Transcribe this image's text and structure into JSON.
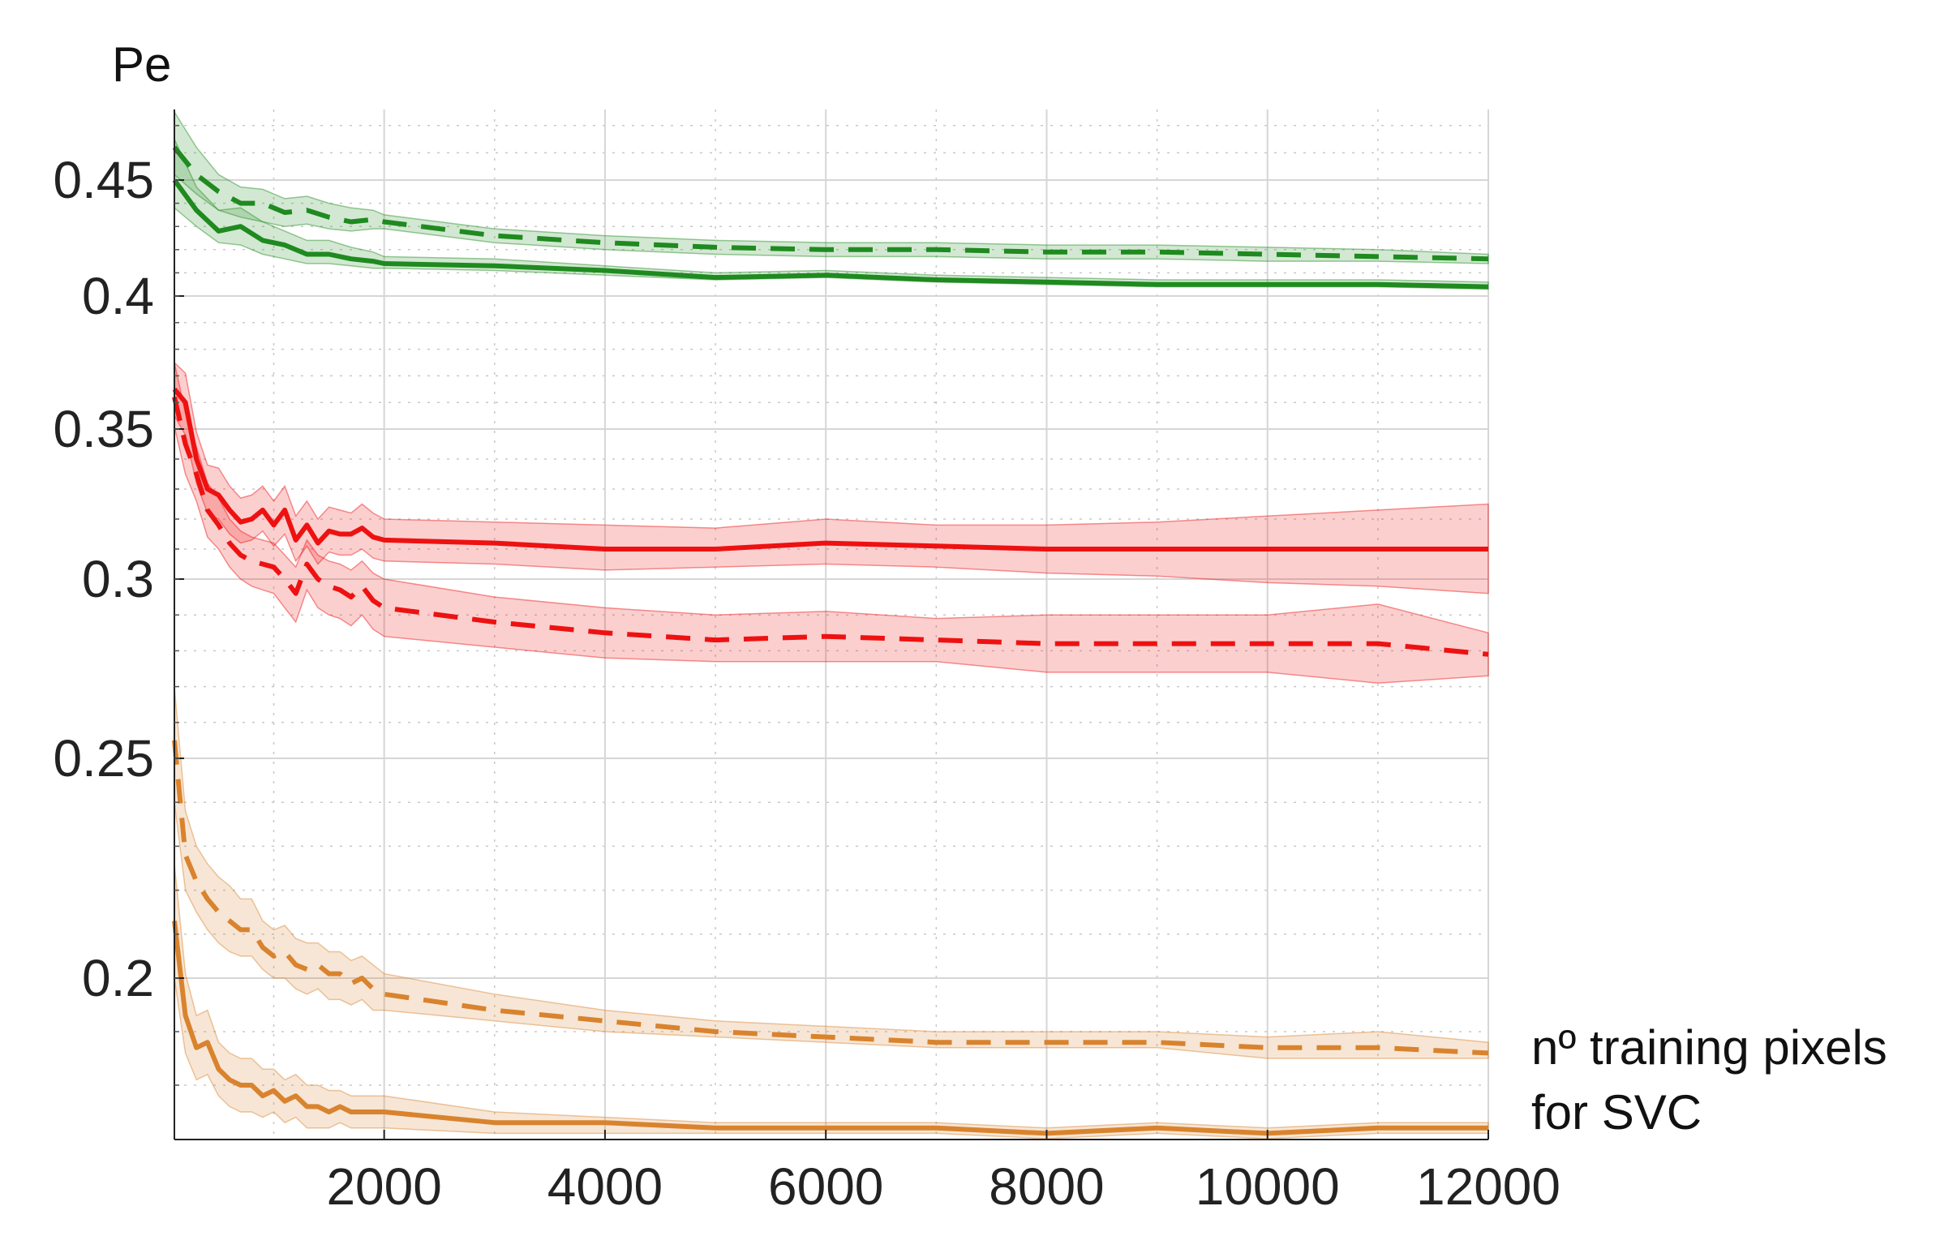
{
  "chart_data": {
    "type": "line",
    "title": "",
    "ylabel": "Pe",
    "xlabel_lines": [
      "nº training pixels",
      "for SVC"
    ],
    "xlim": [
      100,
      12000
    ],
    "ylim": [
      0.17,
      0.475
    ],
    "y_scale": "nonlinear (tick spacing decreases toward upper values)",
    "x_ticks": [
      2000,
      4000,
      6000,
      8000,
      10000,
      12000
    ],
    "x_tick_labels": [
      "2000",
      "4000",
      "6000",
      "8000",
      "10000",
      "12000"
    ],
    "y_ticks": [
      0.2,
      0.25,
      0.3,
      0.35,
      0.4,
      0.45
    ],
    "y_tick_labels": [
      "0.2",
      "0.25",
      "0.3",
      "0.35",
      "0.4",
      "0.45"
    ],
    "grid": true,
    "legend": "none",
    "series": [
      {
        "color": "#1f8a1f",
        "style": "solid",
        "x": [
          100,
          300,
          500,
          700,
          900,
          1100,
          1300,
          1500,
          1700,
          1900,
          2000,
          3000,
          4000,
          5000,
          6000,
          7000,
          8000,
          9000,
          10000,
          11000,
          12000
        ],
        "y": [
          0.45,
          0.437,
          0.428,
          0.43,
          0.424,
          0.422,
          0.418,
          0.418,
          0.416,
          0.415,
          0.414,
          0.413,
          0.411,
          0.408,
          0.409,
          0.407,
          0.406,
          0.405,
          0.405,
          0.405,
          0.404
        ],
        "lower": [
          0.438,
          0.43,
          0.423,
          0.422,
          0.418,
          0.416,
          0.414,
          0.414,
          0.413,
          0.412,
          0.412,
          0.411,
          0.409,
          0.407,
          0.408,
          0.406,
          0.405,
          0.404,
          0.404,
          0.404,
          0.403
        ],
        "upper": [
          0.465,
          0.447,
          0.437,
          0.438,
          0.432,
          0.428,
          0.424,
          0.424,
          0.421,
          0.419,
          0.417,
          0.416,
          0.413,
          0.41,
          0.411,
          0.409,
          0.408,
          0.407,
          0.407,
          0.407,
          0.406
        ]
      },
      {
        "color": "#1f8a1f",
        "style": "dashed",
        "x": [
          100,
          300,
          500,
          700,
          900,
          1100,
          1300,
          1500,
          1700,
          1900,
          2000,
          3000,
          4000,
          5000,
          6000,
          7000,
          8000,
          9000,
          10000,
          11000,
          12000
        ],
        "y": [
          0.462,
          0.452,
          0.445,
          0.44,
          0.44,
          0.436,
          0.437,
          0.434,
          0.432,
          0.433,
          0.432,
          0.426,
          0.423,
          0.421,
          0.42,
          0.42,
          0.419,
          0.419,
          0.418,
          0.417,
          0.416
        ],
        "lower": [
          0.452,
          0.444,
          0.437,
          0.434,
          0.432,
          0.43,
          0.431,
          0.429,
          0.428,
          0.429,
          0.429,
          0.423,
          0.42,
          0.418,
          0.417,
          0.417,
          0.416,
          0.416,
          0.415,
          0.415,
          0.414
        ],
        "upper": [
          0.475,
          0.462,
          0.452,
          0.447,
          0.446,
          0.442,
          0.443,
          0.44,
          0.438,
          0.437,
          0.435,
          0.429,
          0.426,
          0.424,
          0.423,
          0.423,
          0.422,
          0.422,
          0.421,
          0.42,
          0.418
        ]
      },
      {
        "color": "#ee1111",
        "style": "solid",
        "x": [
          100,
          200,
          300,
          400,
          500,
          600,
          700,
          800,
          900,
          1000,
          1100,
          1200,
          1300,
          1400,
          1500,
          1600,
          1700,
          1800,
          1900,
          2000,
          3000,
          4000,
          5000,
          6000,
          7000,
          8000,
          9000,
          10000,
          11000,
          12000
        ],
        "y": [
          0.365,
          0.36,
          0.34,
          0.33,
          0.328,
          0.323,
          0.319,
          0.32,
          0.323,
          0.318,
          0.323,
          0.313,
          0.318,
          0.312,
          0.316,
          0.315,
          0.315,
          0.317,
          0.314,
          0.313,
          0.312,
          0.31,
          0.31,
          0.312,
          0.311,
          0.31,
          0.31,
          0.31,
          0.31,
          0.31
        ],
        "lower": [
          0.355,
          0.348,
          0.332,
          0.322,
          0.32,
          0.315,
          0.312,
          0.313,
          0.316,
          0.311,
          0.315,
          0.306,
          0.311,
          0.305,
          0.309,
          0.308,
          0.308,
          0.31,
          0.307,
          0.306,
          0.305,
          0.303,
          0.304,
          0.305,
          0.304,
          0.302,
          0.301,
          0.299,
          0.298,
          0.296
        ],
        "upper": [
          0.375,
          0.371,
          0.349,
          0.338,
          0.337,
          0.331,
          0.327,
          0.328,
          0.331,
          0.326,
          0.331,
          0.321,
          0.326,
          0.32,
          0.324,
          0.323,
          0.322,
          0.325,
          0.322,
          0.32,
          0.319,
          0.318,
          0.317,
          0.32,
          0.318,
          0.318,
          0.319,
          0.321,
          0.323,
          0.325
        ]
      },
      {
        "color": "#ee1111",
        "style": "dashed",
        "x": [
          100,
          200,
          300,
          400,
          500,
          600,
          700,
          800,
          900,
          1000,
          1100,
          1200,
          1300,
          1400,
          1500,
          1600,
          1700,
          1800,
          1900,
          2000,
          3000,
          4000,
          5000,
          6000,
          7000,
          8000,
          9000,
          10000,
          11000,
          12000
        ],
        "y": [
          0.362,
          0.345,
          0.335,
          0.323,
          0.318,
          0.312,
          0.308,
          0.306,
          0.305,
          0.304,
          0.3,
          0.296,
          0.305,
          0.3,
          0.298,
          0.297,
          0.295,
          0.298,
          0.294,
          0.292,
          0.288,
          0.285,
          0.283,
          0.284,
          0.283,
          0.282,
          0.282,
          0.282,
          0.282,
          0.279
        ],
        "lower": [
          0.351,
          0.335,
          0.326,
          0.314,
          0.31,
          0.304,
          0.3,
          0.298,
          0.297,
          0.296,
          0.292,
          0.288,
          0.297,
          0.292,
          0.29,
          0.289,
          0.287,
          0.29,
          0.286,
          0.284,
          0.281,
          0.278,
          0.277,
          0.277,
          0.277,
          0.274,
          0.274,
          0.274,
          0.271,
          0.273
        ],
        "upper": [
          0.375,
          0.356,
          0.344,
          0.332,
          0.327,
          0.32,
          0.316,
          0.314,
          0.313,
          0.312,
          0.308,
          0.304,
          0.313,
          0.308,
          0.306,
          0.305,
          0.303,
          0.306,
          0.302,
          0.3,
          0.295,
          0.292,
          0.29,
          0.291,
          0.289,
          0.29,
          0.29,
          0.29,
          0.293,
          0.285
        ]
      },
      {
        "color": "#d9832e",
        "style": "solid",
        "x": [
          100,
          200,
          300,
          400,
          500,
          600,
          700,
          800,
          900,
          1000,
          1100,
          1200,
          1300,
          1400,
          1500,
          1600,
          1700,
          1800,
          1900,
          2000,
          3000,
          4000,
          5000,
          6000,
          7000,
          8000,
          9000,
          10000,
          11000,
          12000
        ],
        "y": [
          0.213,
          0.193,
          0.187,
          0.188,
          0.183,
          0.181,
          0.18,
          0.18,
          0.178,
          0.179,
          0.177,
          0.178,
          0.176,
          0.176,
          0.175,
          0.176,
          0.175,
          0.175,
          0.175,
          0.175,
          0.173,
          0.173,
          0.172,
          0.172,
          0.172,
          0.171,
          0.172,
          0.171,
          0.172,
          0.172
        ],
        "lower": [
          0.2,
          0.186,
          0.181,
          0.182,
          0.178,
          0.176,
          0.175,
          0.175,
          0.174,
          0.175,
          0.173,
          0.174,
          0.172,
          0.172,
          0.172,
          0.173,
          0.172,
          0.172,
          0.172,
          0.172,
          0.171,
          0.171,
          0.171,
          0.171,
          0.171,
          0.17,
          0.171,
          0.17,
          0.171,
          0.171
        ],
        "upper": [
          0.226,
          0.201,
          0.193,
          0.194,
          0.188,
          0.186,
          0.185,
          0.185,
          0.183,
          0.183,
          0.181,
          0.182,
          0.18,
          0.18,
          0.179,
          0.179,
          0.178,
          0.178,
          0.178,
          0.178,
          0.175,
          0.174,
          0.173,
          0.173,
          0.173,
          0.172,
          0.173,
          0.172,
          0.173,
          0.173
        ]
      },
      {
        "color": "#d9832e",
        "style": "dashed",
        "x": [
          100,
          200,
          300,
          400,
          500,
          600,
          700,
          800,
          900,
          1000,
          1100,
          1200,
          1300,
          1400,
          1500,
          1600,
          1700,
          1800,
          1900,
          2000,
          3000,
          4000,
          5000,
          6000,
          7000,
          8000,
          9000,
          10000,
          11000,
          12000
        ],
        "y": [
          0.255,
          0.228,
          0.222,
          0.218,
          0.215,
          0.213,
          0.211,
          0.211,
          0.207,
          0.205,
          0.206,
          0.203,
          0.202,
          0.203,
          0.201,
          0.201,
          0.199,
          0.2,
          0.198,
          0.197,
          0.194,
          0.192,
          0.19,
          0.189,
          0.188,
          0.188,
          0.188,
          0.187,
          0.187,
          0.186
        ],
        "lower": [
          0.24,
          0.22,
          0.215,
          0.211,
          0.208,
          0.206,
          0.205,
          0.205,
          0.202,
          0.2,
          0.2,
          0.198,
          0.197,
          0.198,
          0.196,
          0.196,
          0.195,
          0.196,
          0.194,
          0.194,
          0.192,
          0.19,
          0.189,
          0.188,
          0.187,
          0.187,
          0.187,
          0.185,
          0.185,
          0.185
        ],
        "upper": [
          0.27,
          0.238,
          0.23,
          0.226,
          0.223,
          0.221,
          0.218,
          0.218,
          0.213,
          0.211,
          0.212,
          0.209,
          0.208,
          0.208,
          0.206,
          0.206,
          0.204,
          0.205,
          0.203,
          0.201,
          0.197,
          0.194,
          0.192,
          0.191,
          0.19,
          0.19,
          0.19,
          0.189,
          0.19,
          0.188
        ]
      }
    ]
  }
}
